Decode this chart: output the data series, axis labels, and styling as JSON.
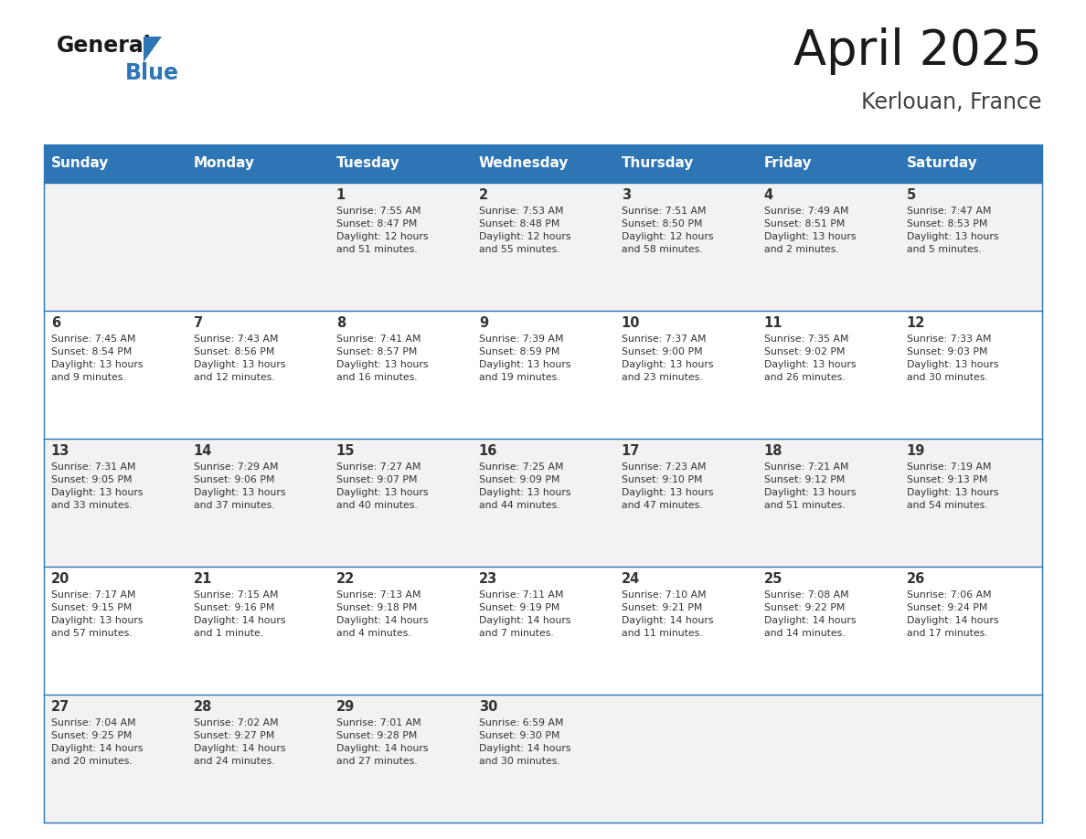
{
  "title": "April 2025",
  "subtitle": "Kerlouan, France",
  "header_color": "#2E75B6",
  "header_text_color": "#FFFFFF",
  "cell_bg_even": "#F2F2F2",
  "cell_bg_odd": "#FFFFFF",
  "text_color": "#333333",
  "line_color": "#2E75B6",
  "days_of_week": [
    "Sunday",
    "Monday",
    "Tuesday",
    "Wednesday",
    "Thursday",
    "Friday",
    "Saturday"
  ],
  "weeks": [
    [
      {
        "day": null,
        "info": null
      },
      {
        "day": null,
        "info": null
      },
      {
        "day": 1,
        "info": "Sunrise: 7:55 AM\nSunset: 8:47 PM\nDaylight: 12 hours\nand 51 minutes."
      },
      {
        "day": 2,
        "info": "Sunrise: 7:53 AM\nSunset: 8:48 PM\nDaylight: 12 hours\nand 55 minutes."
      },
      {
        "day": 3,
        "info": "Sunrise: 7:51 AM\nSunset: 8:50 PM\nDaylight: 12 hours\nand 58 minutes."
      },
      {
        "day": 4,
        "info": "Sunrise: 7:49 AM\nSunset: 8:51 PM\nDaylight: 13 hours\nand 2 minutes."
      },
      {
        "day": 5,
        "info": "Sunrise: 7:47 AM\nSunset: 8:53 PM\nDaylight: 13 hours\nand 5 minutes."
      }
    ],
    [
      {
        "day": 6,
        "info": "Sunrise: 7:45 AM\nSunset: 8:54 PM\nDaylight: 13 hours\nand 9 minutes."
      },
      {
        "day": 7,
        "info": "Sunrise: 7:43 AM\nSunset: 8:56 PM\nDaylight: 13 hours\nand 12 minutes."
      },
      {
        "day": 8,
        "info": "Sunrise: 7:41 AM\nSunset: 8:57 PM\nDaylight: 13 hours\nand 16 minutes."
      },
      {
        "day": 9,
        "info": "Sunrise: 7:39 AM\nSunset: 8:59 PM\nDaylight: 13 hours\nand 19 minutes."
      },
      {
        "day": 10,
        "info": "Sunrise: 7:37 AM\nSunset: 9:00 PM\nDaylight: 13 hours\nand 23 minutes."
      },
      {
        "day": 11,
        "info": "Sunrise: 7:35 AM\nSunset: 9:02 PM\nDaylight: 13 hours\nand 26 minutes."
      },
      {
        "day": 12,
        "info": "Sunrise: 7:33 AM\nSunset: 9:03 PM\nDaylight: 13 hours\nand 30 minutes."
      }
    ],
    [
      {
        "day": 13,
        "info": "Sunrise: 7:31 AM\nSunset: 9:05 PM\nDaylight: 13 hours\nand 33 minutes."
      },
      {
        "day": 14,
        "info": "Sunrise: 7:29 AM\nSunset: 9:06 PM\nDaylight: 13 hours\nand 37 minutes."
      },
      {
        "day": 15,
        "info": "Sunrise: 7:27 AM\nSunset: 9:07 PM\nDaylight: 13 hours\nand 40 minutes."
      },
      {
        "day": 16,
        "info": "Sunrise: 7:25 AM\nSunset: 9:09 PM\nDaylight: 13 hours\nand 44 minutes."
      },
      {
        "day": 17,
        "info": "Sunrise: 7:23 AM\nSunset: 9:10 PM\nDaylight: 13 hours\nand 47 minutes."
      },
      {
        "day": 18,
        "info": "Sunrise: 7:21 AM\nSunset: 9:12 PM\nDaylight: 13 hours\nand 51 minutes."
      },
      {
        "day": 19,
        "info": "Sunrise: 7:19 AM\nSunset: 9:13 PM\nDaylight: 13 hours\nand 54 minutes."
      }
    ],
    [
      {
        "day": 20,
        "info": "Sunrise: 7:17 AM\nSunset: 9:15 PM\nDaylight: 13 hours\nand 57 minutes."
      },
      {
        "day": 21,
        "info": "Sunrise: 7:15 AM\nSunset: 9:16 PM\nDaylight: 14 hours\nand 1 minute."
      },
      {
        "day": 22,
        "info": "Sunrise: 7:13 AM\nSunset: 9:18 PM\nDaylight: 14 hours\nand 4 minutes."
      },
      {
        "day": 23,
        "info": "Sunrise: 7:11 AM\nSunset: 9:19 PM\nDaylight: 14 hours\nand 7 minutes."
      },
      {
        "day": 24,
        "info": "Sunrise: 7:10 AM\nSunset: 9:21 PM\nDaylight: 14 hours\nand 11 minutes."
      },
      {
        "day": 25,
        "info": "Sunrise: 7:08 AM\nSunset: 9:22 PM\nDaylight: 14 hours\nand 14 minutes."
      },
      {
        "day": 26,
        "info": "Sunrise: 7:06 AM\nSunset: 9:24 PM\nDaylight: 14 hours\nand 17 minutes."
      }
    ],
    [
      {
        "day": 27,
        "info": "Sunrise: 7:04 AM\nSunset: 9:25 PM\nDaylight: 14 hours\nand 20 minutes."
      },
      {
        "day": 28,
        "info": "Sunrise: 7:02 AM\nSunset: 9:27 PM\nDaylight: 14 hours\nand 24 minutes."
      },
      {
        "day": 29,
        "info": "Sunrise: 7:01 AM\nSunset: 9:28 PM\nDaylight: 14 hours\nand 27 minutes."
      },
      {
        "day": 30,
        "info": "Sunrise: 6:59 AM\nSunset: 9:30 PM\nDaylight: 14 hours\nand 30 minutes."
      },
      {
        "day": null,
        "info": null
      },
      {
        "day": null,
        "info": null
      },
      {
        "day": null,
        "info": null
      }
    ]
  ],
  "logo_color_general": "#1A1A1A",
  "logo_color_blue": "#2E75B6"
}
